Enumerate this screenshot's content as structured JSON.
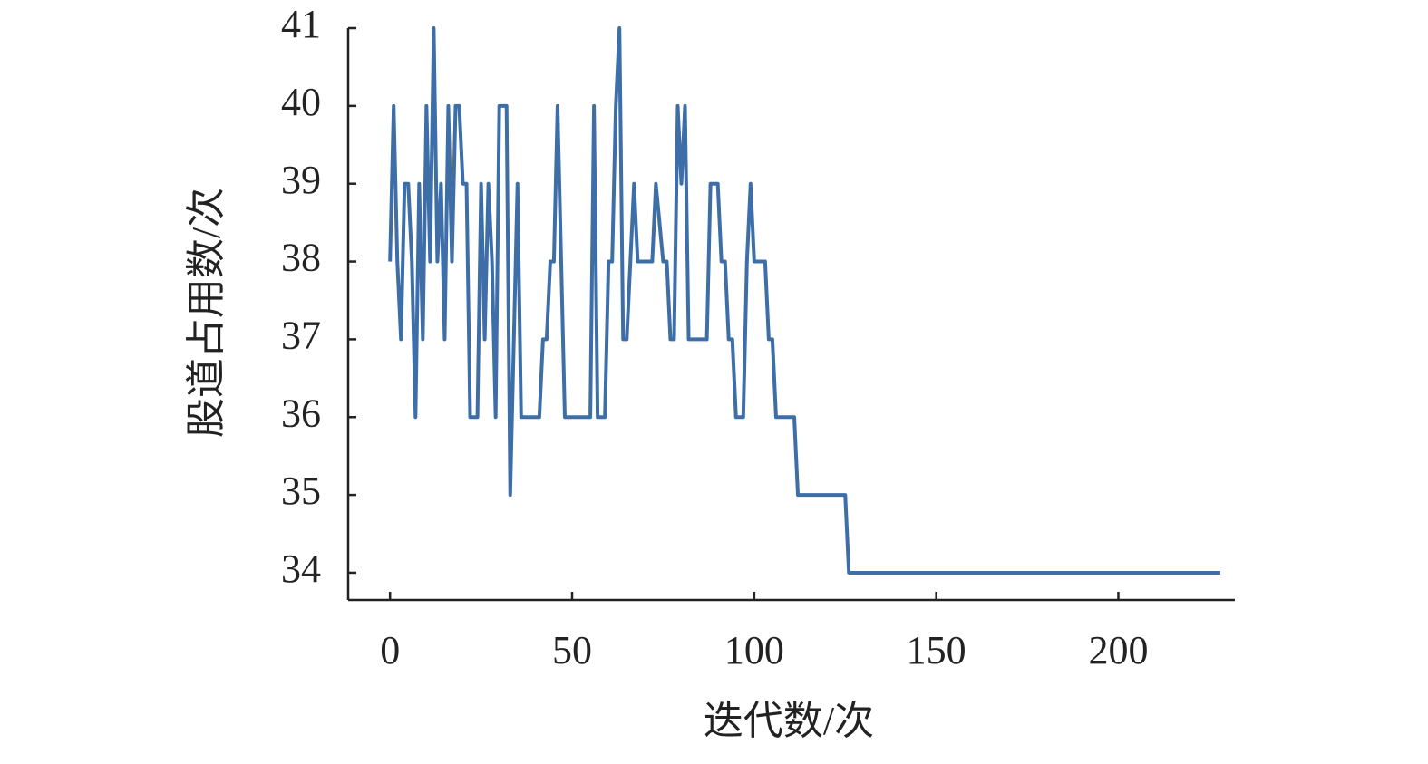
{
  "chart_data": {
    "type": "line",
    "xlabel": "迭代数/次",
    "ylabel": "股道占用数/次",
    "x": [
      0,
      1,
      2,
      3,
      4,
      5,
      6,
      7,
      8,
      9,
      10,
      11,
      12,
      13,
      14,
      15,
      16,
      17,
      18,
      19,
      20,
      21,
      22,
      23,
      24,
      25,
      26,
      27,
      28,
      29,
      30,
      31,
      32,
      33,
      34,
      35,
      36,
      41,
      42,
      43,
      44,
      45,
      46,
      47,
      48,
      55,
      56,
      57,
      59,
      60,
      61,
      62,
      63,
      64,
      65,
      66,
      67,
      68,
      72,
      73,
      75,
      76,
      77,
      78,
      79,
      80,
      81,
      82,
      87,
      88,
      90,
      91,
      92,
      93,
      94,
      95,
      97,
      98,
      99,
      100,
      103,
      104,
      105,
      106,
      111,
      112,
      125,
      126,
      228
    ],
    "series": [
      {
        "color": "#3d6ea8",
        "values": [
          38,
          40,
          38,
          37,
          39,
          39,
          38,
          36,
          39,
          37,
          40,
          38,
          41,
          38,
          39,
          37,
          40,
          38,
          40,
          40,
          39,
          39,
          36,
          36,
          36,
          39,
          37,
          39,
          38,
          36,
          40,
          40,
          40,
          35,
          37,
          39,
          36,
          36,
          37,
          37,
          38,
          38,
          40,
          38,
          36,
          36,
          40,
          36,
          36,
          38,
          38,
          40,
          41,
          37,
          37,
          38,
          39,
          38,
          38,
          39,
          38,
          38,
          37,
          37,
          40,
          39,
          40,
          37,
          37,
          39,
          39,
          38,
          38,
          37,
          37,
          36,
          36,
          38,
          39,
          38,
          38,
          37,
          37,
          36,
          36,
          35,
          35,
          34,
          34
        ]
      }
    ],
    "xlim": [
      -11.5,
      232
    ],
    "ylim": [
      33.65,
      41
    ],
    "xticks": [
      0,
      50,
      100,
      150,
      200
    ],
    "yticks": [
      34,
      35,
      36,
      37,
      38,
      39,
      40,
      41
    ]
  }
}
